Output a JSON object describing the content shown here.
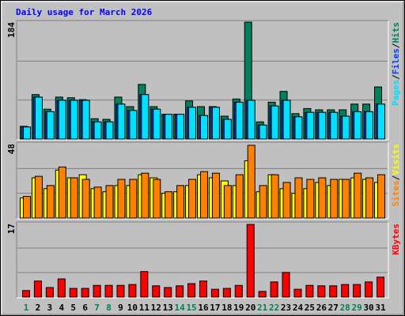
{
  "title": "Daily usage for March 2026",
  "legend_separator": "/",
  "weekend_color": "#00805C",
  "weekend": [
    0,
    6,
    7,
    13,
    14,
    20,
    21,
    27,
    28
  ],
  "chart_data": [
    {
      "type": "bar",
      "ylim": [
        0,
        184
      ],
      "yticks": [
        184
      ],
      "grid_divisions": 3,
      "series": [
        {
          "name": "Hits",
          "color": "#00805C",
          "values": [
            20,
            70,
            47,
            66,
            65,
            62,
            32,
            31,
            66,
            51,
            86,
            51,
            39,
            39,
            60,
            51,
            51,
            36,
            63,
            184,
            27,
            58,
            75,
            40,
            48,
            46,
            46,
            46,
            55,
            55,
            82
          ]
        },
        {
          "name": "Files",
          "color": "#0040FF",
          "values": [
            19,
            66,
            43,
            61,
            61,
            61,
            27,
            27,
            55,
            45,
            70,
            47,
            39,
            39,
            50,
            37,
            50,
            31,
            58,
            61,
            22,
            52,
            61,
            35,
            42,
            42,
            42,
            36,
            43,
            43,
            55
          ]
        },
        {
          "name": "Pages",
          "color": "#00E0FF",
          "values": [
            19,
            66,
            43,
            61,
            61,
            61,
            27,
            27,
            55,
            45,
            70,
            47,
            39,
            39,
            50,
            37,
            50,
            31,
            58,
            61,
            22,
            52,
            61,
            35,
            42,
            42,
            42,
            36,
            43,
            43,
            55
          ]
        }
      ]
    },
    {
      "type": "bar",
      "ylim": [
        0,
        48
      ],
      "yticks": [
        48
      ],
      "grid_divisions": 3,
      "series": [
        {
          "name": "Visits",
          "color": "#FFFF00",
          "values": [
            13,
            26,
            19,
            31,
            26,
            28,
            19,
            17,
            21,
            21,
            28,
            26,
            16,
            17,
            21,
            28,
            26,
            24,
            21,
            37,
            17,
            28,
            19,
            16,
            19,
            23,
            21,
            25,
            26,
            25,
            23
          ]
        },
        {
          "name": "Sites",
          "color": "#FF8000",
          "values": [
            14,
            27,
            21,
            33,
            26,
            25,
            20,
            21,
            25,
            25,
            29,
            25,
            17,
            21,
            25,
            30,
            29,
            21,
            28,
            47,
            21,
            28,
            23,
            26,
            25,
            26,
            25,
            25,
            29,
            26,
            28
          ]
        }
      ]
    },
    {
      "type": "bar",
      "ylim": [
        0,
        17
      ],
      "yticks": [
        17
      ],
      "grid_divisions": 3,
      "categories": [
        "1",
        "2",
        "3",
        "4",
        "5",
        "6",
        "7",
        "8",
        "9",
        "10",
        "11",
        "12",
        "13",
        "14",
        "15",
        "16",
        "17",
        "18",
        "19",
        "20",
        "21",
        "22",
        "23",
        "24",
        "25",
        "26",
        "27",
        "28",
        "29",
        "30",
        "31"
      ],
      "series": [
        {
          "name": "KBytes",
          "color": "#FF0000",
          "values": [
            1.5,
            3.7,
            2.2,
            4.2,
            2,
            2,
            2.7,
            2.7,
            2.7,
            2.9,
            5.9,
            2.6,
            2.2,
            2.6,
            3.1,
            3.7,
            1.8,
            2,
            2.7,
            16.8,
            1.3,
            3.5,
            5.7,
            1.8,
            2.7,
            2.6,
            2.6,
            2.9,
            2.9,
            3.5,
            4.6
          ]
        }
      ]
    }
  ]
}
